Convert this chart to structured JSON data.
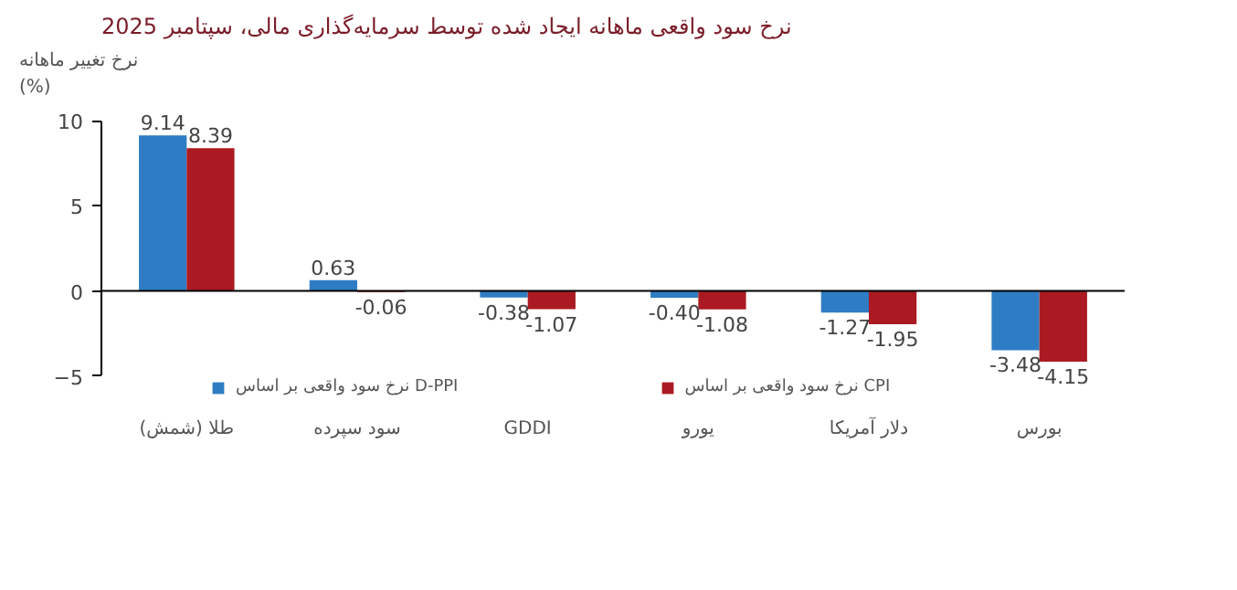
{
  "chart_data": {
    "type": "bar",
    "title": "نرخ سود واقعی ماهانه ایجاد شده توسط سرمایه‌گذاری مالی، سپتامبر 2025",
    "ylabel": "نرخ تغییر ماهانه\n(%)",
    "categories": [
      "طلا (شمش)",
      "سود سپرده",
      "GDDI",
      "یورو",
      "دلار آمریکا",
      "بورس"
    ],
    "series": [
      {
        "name": "نرخ سود واقعی بر اساس D-PPI",
        "color": "#2e7dc4",
        "values": [
          9.14,
          0.63,
          -0.38,
          -0.4,
          -1.27,
          -3.48
        ],
        "value_labels": [
          "9.14",
          "0.63",
          "-0.38",
          "-0.40",
          "-1.27",
          "-3.48"
        ]
      },
      {
        "name": "نرخ سود واقعی بر اساس CPI",
        "color": "#ab1a22",
        "values": [
          8.39,
          -0.06,
          -1.07,
          -1.08,
          -1.95,
          -4.15
        ],
        "value_labels": [
          "8.39",
          "-0.06",
          "-1.07",
          "-1.08",
          "-1.95",
          "-4.15"
        ]
      }
    ],
    "ylim": [
      -5,
      10
    ],
    "yticks": [
      -5,
      0,
      5,
      10
    ],
    "legend": "bottom"
  }
}
